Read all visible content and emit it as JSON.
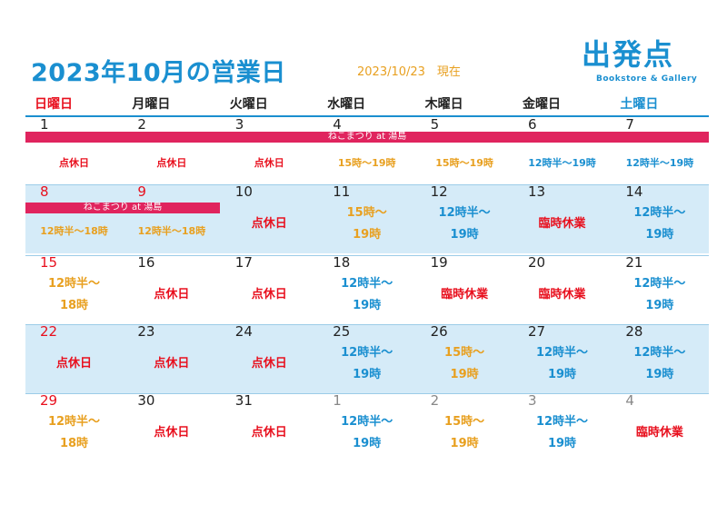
{
  "title": "2023年10月の営業日",
  "date_note": "2023/10/23　現在",
  "logo": {
    "mark": "出発点",
    "subtitle": "Bookstore & Gallery"
  },
  "colors": {
    "accent": "#1a8fd0",
    "red": "#e8101e",
    "orange": "#e8a020",
    "light_blue": "#d5ebf8",
    "banner": "#e0245e"
  },
  "weekdays": [
    {
      "label": "日曜日",
      "color": "#e8101e"
    },
    {
      "label": "月曜日",
      "color": "#222222"
    },
    {
      "label": "火曜日",
      "color": "#222222"
    },
    {
      "label": "水曜日",
      "color": "#222222"
    },
    {
      "label": "木曜日",
      "color": "#222222"
    },
    {
      "label": "金曜日",
      "color": "#222222"
    },
    {
      "label": "土曜日",
      "color": "#1a8fd0"
    }
  ],
  "banner_week1": "ねこまつり at 湯島",
  "banner_week2": "ねこまつり at 湯島",
  "weeks": [
    {
      "days": [
        {
          "n": "1",
          "color": "#222222",
          "status": "点休日",
          "scolor": "#e8101e"
        },
        {
          "n": "2",
          "color": "#222222",
          "status": "点休日",
          "scolor": "#e8101e"
        },
        {
          "n": "3",
          "color": "#222222",
          "status": "点休日",
          "scolor": "#e8101e"
        },
        {
          "n": "4",
          "color": "#222222",
          "status": "15時～19時",
          "scolor": "#e8a020"
        },
        {
          "n": "5",
          "color": "#222222",
          "status": "15時～19時",
          "scolor": "#e8a020"
        },
        {
          "n": "6",
          "color": "#222222",
          "status": "12時半～19時",
          "scolor": "#1a8fd0"
        },
        {
          "n": "7",
          "color": "#222222",
          "status": "12時半～19時",
          "scolor": "#1a8fd0"
        }
      ]
    },
    {
      "days": [
        {
          "n": "8",
          "color": "#e8101e",
          "status": "12時半～18時",
          "scolor": "#e8a020"
        },
        {
          "n": "9",
          "color": "#e8101e",
          "status": "12時半～18時",
          "scolor": "#e8a020"
        },
        {
          "n": "10",
          "color": "#222222",
          "status": "点休日",
          "scolor": "#e8101e"
        },
        {
          "n": "11",
          "color": "#222222",
          "status": "15時～\n19時",
          "scolor": "#e8a020"
        },
        {
          "n": "12",
          "color": "#222222",
          "status": "12時半～\n19時",
          "scolor": "#1a8fd0"
        },
        {
          "n": "13",
          "color": "#222222",
          "status": "臨時休業",
          "scolor": "#e8101e"
        },
        {
          "n": "14",
          "color": "#222222",
          "status": "12時半～\n19時",
          "scolor": "#1a8fd0"
        }
      ]
    },
    {
      "days": [
        {
          "n": "15",
          "color": "#e8101e",
          "status": "12時半～\n18時",
          "scolor": "#e8a020"
        },
        {
          "n": "16",
          "color": "#222222",
          "status": "点休日",
          "scolor": "#e8101e"
        },
        {
          "n": "17",
          "color": "#222222",
          "status": "点休日",
          "scolor": "#e8101e"
        },
        {
          "n": "18",
          "color": "#222222",
          "status": "12時半～\n19時",
          "scolor": "#1a8fd0"
        },
        {
          "n": "19",
          "color": "#222222",
          "status": "臨時休業",
          "scolor": "#e8101e"
        },
        {
          "n": "20",
          "color": "#222222",
          "status": "臨時休業",
          "scolor": "#e8101e"
        },
        {
          "n": "21",
          "color": "#222222",
          "status": "12時半～\n19時",
          "scolor": "#1a8fd0"
        }
      ]
    },
    {
      "days": [
        {
          "n": "22",
          "color": "#e8101e",
          "status": "点休日",
          "scolor": "#e8101e"
        },
        {
          "n": "23",
          "color": "#222222",
          "status": "点休日",
          "scolor": "#e8101e"
        },
        {
          "n": "24",
          "color": "#222222",
          "status": "点休日",
          "scolor": "#e8101e"
        },
        {
          "n": "25",
          "color": "#222222",
          "status": "12時半～\n19時",
          "scolor": "#1a8fd0"
        },
        {
          "n": "26",
          "color": "#222222",
          "status": "15時～\n19時",
          "scolor": "#e8a020"
        },
        {
          "n": "27",
          "color": "#222222",
          "status": "12時半～\n19時",
          "scolor": "#1a8fd0"
        },
        {
          "n": "28",
          "color": "#222222",
          "status": "12時半～\n19時",
          "scolor": "#1a8fd0"
        }
      ]
    },
    {
      "days": [
        {
          "n": "29",
          "color": "#e8101e",
          "status": "12時半～\n18時",
          "scolor": "#e8a020"
        },
        {
          "n": "30",
          "color": "#222222",
          "status": "点休日",
          "scolor": "#e8101e"
        },
        {
          "n": "31",
          "color": "#222222",
          "status": "点休日",
          "scolor": "#e8101e"
        },
        {
          "n": "1",
          "color": "#888888",
          "status": "12時半～\n19時",
          "scolor": "#1a8fd0"
        },
        {
          "n": "2",
          "color": "#888888",
          "status": "15時～\n19時",
          "scolor": "#e8a020"
        },
        {
          "n": "3",
          "color": "#888888",
          "status": "12時半～\n19時",
          "scolor": "#1a8fd0"
        },
        {
          "n": "4",
          "color": "#888888",
          "status": "臨時休業",
          "scolor": "#e8101e"
        }
      ]
    }
  ]
}
